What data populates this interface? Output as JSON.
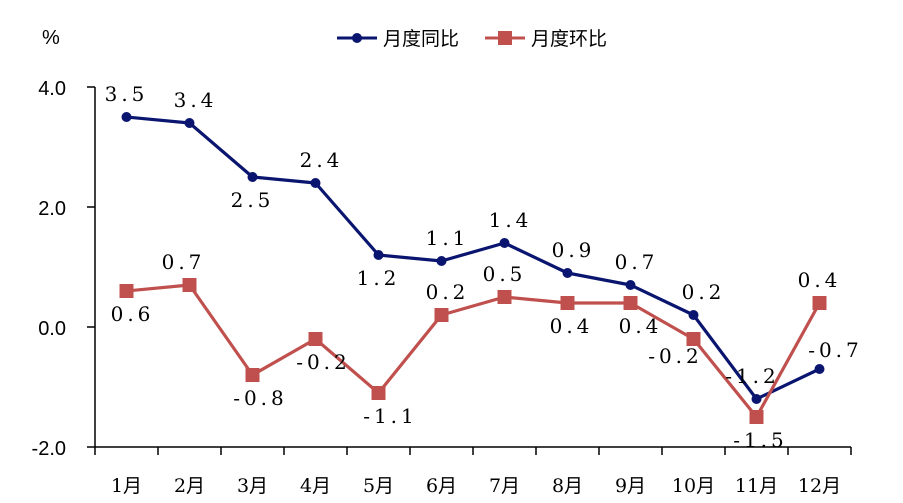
{
  "chart_data": {
    "type": "line",
    "unit_label": "%",
    "categories": [
      "1月",
      "2月",
      "3月",
      "4月",
      "5月",
      "6月",
      "7月",
      "8月",
      "9月",
      "10月",
      "11月",
      "12月"
    ],
    "ylim": [
      -2.0,
      4.0
    ],
    "yticks": [
      -2.0,
      0.0,
      2.0,
      4.0
    ],
    "ytick_labels": [
      "-2.0",
      "0.0",
      "2.0",
      "4.0"
    ],
    "grid": false,
    "legend_position": "top",
    "series": [
      {
        "name": "月度同比",
        "color": "#0a1570",
        "marker": "circle",
        "values": [
          3.5,
          3.4,
          2.5,
          2.4,
          1.2,
          1.1,
          1.4,
          0.9,
          0.7,
          0.2,
          -1.2,
          -0.7
        ],
        "labels": [
          "3.5",
          "3.4",
          "2.5",
          "2.4",
          "1.2",
          "1.1",
          "1.4",
          "0.9",
          "0.7",
          "0.2",
          "-1.2",
          "-0.7"
        ]
      },
      {
        "name": "月度环比",
        "color": "#c0504d",
        "marker": "square",
        "values": [
          0.6,
          0.7,
          -0.8,
          -0.2,
          -1.1,
          0.2,
          0.5,
          0.4,
          0.4,
          -0.2,
          -1.5,
          0.4
        ],
        "labels": [
          "0.6",
          "0.7",
          "-0.8",
          "-0.2",
          "-1.1",
          "0.2",
          "0.5",
          "0.4",
          "0.4",
          "-0.2",
          "-1.5",
          "0.4"
        ]
      }
    ]
  }
}
